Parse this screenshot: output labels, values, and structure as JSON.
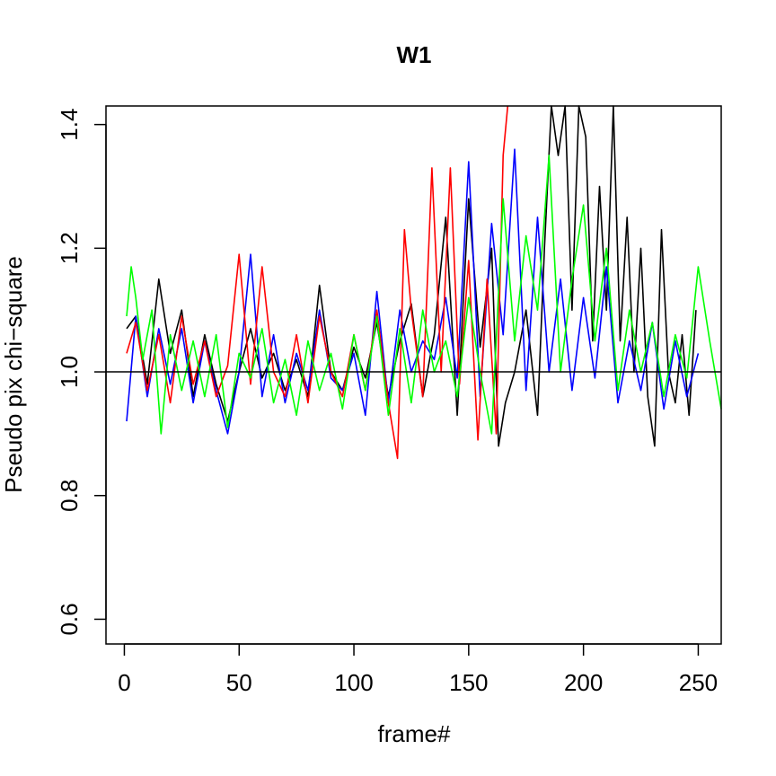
{
  "chart_data": {
    "type": "line",
    "title": "W1",
    "xlabel": "frame#",
    "ylabel": "Pseudo pix chi−square",
    "xlim": [
      -8,
      260
    ],
    "ylim": [
      0.56,
      1.43
    ],
    "x_ticks": [
      0,
      50,
      100,
      150,
      200,
      250
    ],
    "x_tick_labels": [
      "0",
      "50",
      "100",
      "150",
      "200",
      "250"
    ],
    "y_ticks": [
      0.6,
      0.8,
      1.0,
      1.2,
      1.4
    ],
    "y_tick_labels": [
      "0.6",
      "0.8",
      "1.0",
      "1.2",
      "1.4"
    ],
    "reference_line": {
      "y": 1.0,
      "color": "#000000"
    },
    "grid": false,
    "legend": "none",
    "series": [
      {
        "color": "#000000",
        "x": [
          1,
          5,
          10,
          15,
          20,
          25,
          30,
          35,
          40,
          45,
          50,
          55,
          60,
          65,
          70,
          75,
          80,
          85,
          90,
          95,
          100,
          105,
          110,
          115,
          120,
          125,
          130,
          135,
          140,
          145,
          150,
          155,
          160,
          163,
          166,
          170,
          175,
          180,
          183,
          186,
          189,
          192,
          195,
          198,
          201,
          204,
          207,
          210,
          213,
          216,
          219,
          222,
          225,
          228,
          231,
          234,
          237,
          240,
          243,
          246,
          249
        ],
        "y": [
          1.07,
          1.09,
          0.98,
          1.15,
          1.03,
          1.1,
          0.96,
          1.06,
          0.98,
          0.92,
          1.0,
          1.07,
          0.99,
          1.03,
          0.97,
          1.02,
          0.96,
          1.14,
          1.0,
          0.97,
          1.04,
          0.99,
          1.08,
          0.96,
          1.05,
          1.11,
          0.96,
          1.06,
          1.25,
          0.93,
          1.28,
          1.04,
          1.2,
          0.88,
          0.95,
          1.0,
          1.1,
          0.93,
          1.2,
          1.43,
          1.35,
          1.43,
          1.1,
          1.43,
          1.38,
          1.05,
          1.3,
          1.1,
          1.43,
          1.05,
          1.25,
          1.0,
          1.2,
          0.96,
          0.88,
          1.23,
          1.0,
          0.95,
          1.06,
          0.93,
          1.1
        ]
      },
      {
        "color": "#0000ff",
        "x": [
          1,
          5,
          10,
          15,
          20,
          25,
          30,
          35,
          40,
          45,
          50,
          55,
          60,
          65,
          70,
          75,
          80,
          85,
          90,
          95,
          100,
          105,
          110,
          115,
          120,
          125,
          130,
          135,
          140,
          145,
          150,
          155,
          160,
          165,
          170,
          175,
          180,
          185,
          190,
          195,
          200,
          205,
          210,
          215,
          220,
          225,
          230,
          235,
          240,
          245,
          250
        ],
        "y": [
          0.92,
          1.09,
          0.96,
          1.07,
          0.98,
          1.07,
          0.95,
          1.05,
          0.97,
          0.9,
          1.0,
          1.19,
          0.96,
          1.06,
          0.95,
          1.03,
          0.97,
          1.1,
          0.99,
          0.97,
          1.03,
          0.93,
          1.13,
          0.95,
          1.1,
          1.0,
          1.05,
          1.02,
          1.12,
          0.99,
          1.34,
          0.96,
          1.24,
          1.06,
          1.36,
          0.97,
          1.25,
          1.0,
          1.15,
          0.97,
          1.12,
          0.99,
          1.17,
          0.95,
          1.05,
          0.97,
          1.08,
          0.94,
          1.05,
          0.96,
          1.03
        ]
      },
      {
        "color": "#ff0000",
        "x": [
          1,
          5,
          10,
          15,
          20,
          25,
          30,
          35,
          40,
          45,
          50,
          55,
          60,
          65,
          70,
          75,
          80,
          85,
          90,
          95,
          100,
          105,
          110,
          115,
          119,
          122,
          125,
          130,
          134,
          138,
          142,
          146,
          150,
          154,
          158,
          162,
          165,
          167
        ],
        "y": [
          1.03,
          1.08,
          0.97,
          1.06,
          0.95,
          1.09,
          0.98,
          1.05,
          0.96,
          1.01,
          1.19,
          0.98,
          1.17,
          1.0,
          0.96,
          1.06,
          0.95,
          1.09,
          1.0,
          0.96,
          1.06,
          0.97,
          1.1,
          0.95,
          0.86,
          1.23,
          1.1,
          0.96,
          1.33,
          1.0,
          1.33,
          0.98,
          1.18,
          0.89,
          1.15,
          0.9,
          1.35,
          1.43
        ]
      },
      {
        "color": "#00ff00",
        "x": [
          1,
          3,
          5,
          8,
          12,
          16,
          20,
          25,
          30,
          35,
          40,
          45,
          50,
          55,
          60,
          65,
          70,
          75,
          80,
          85,
          90,
          95,
          100,
          105,
          110,
          115,
          120,
          125,
          130,
          135,
          140,
          145,
          150,
          155,
          160,
          165,
          170,
          175,
          180,
          185,
          190,
          195,
          200,
          205,
          210,
          215,
          220,
          225,
          230,
          235,
          240,
          245,
          250,
          255,
          260
        ],
        "y": [
          1.09,
          1.17,
          1.12,
          1.02,
          1.1,
          0.9,
          1.06,
          0.97,
          1.05,
          0.96,
          1.06,
          0.91,
          1.03,
          0.99,
          1.07,
          0.95,
          1.02,
          0.93,
          1.05,
          0.97,
          1.03,
          0.94,
          1.06,
          0.97,
          1.09,
          0.93,
          1.07,
          0.95,
          1.1,
          1.0,
          1.05,
          0.96,
          1.12,
          1.0,
          0.9,
          1.28,
          1.05,
          1.22,
          1.1,
          1.35,
          1.0,
          1.15,
          1.27,
          1.05,
          1.2,
          0.97,
          1.1,
          1.0,
          1.08,
          0.96,
          1.06,
          0.99,
          1.17,
          1.05,
          0.94
        ]
      }
    ]
  }
}
